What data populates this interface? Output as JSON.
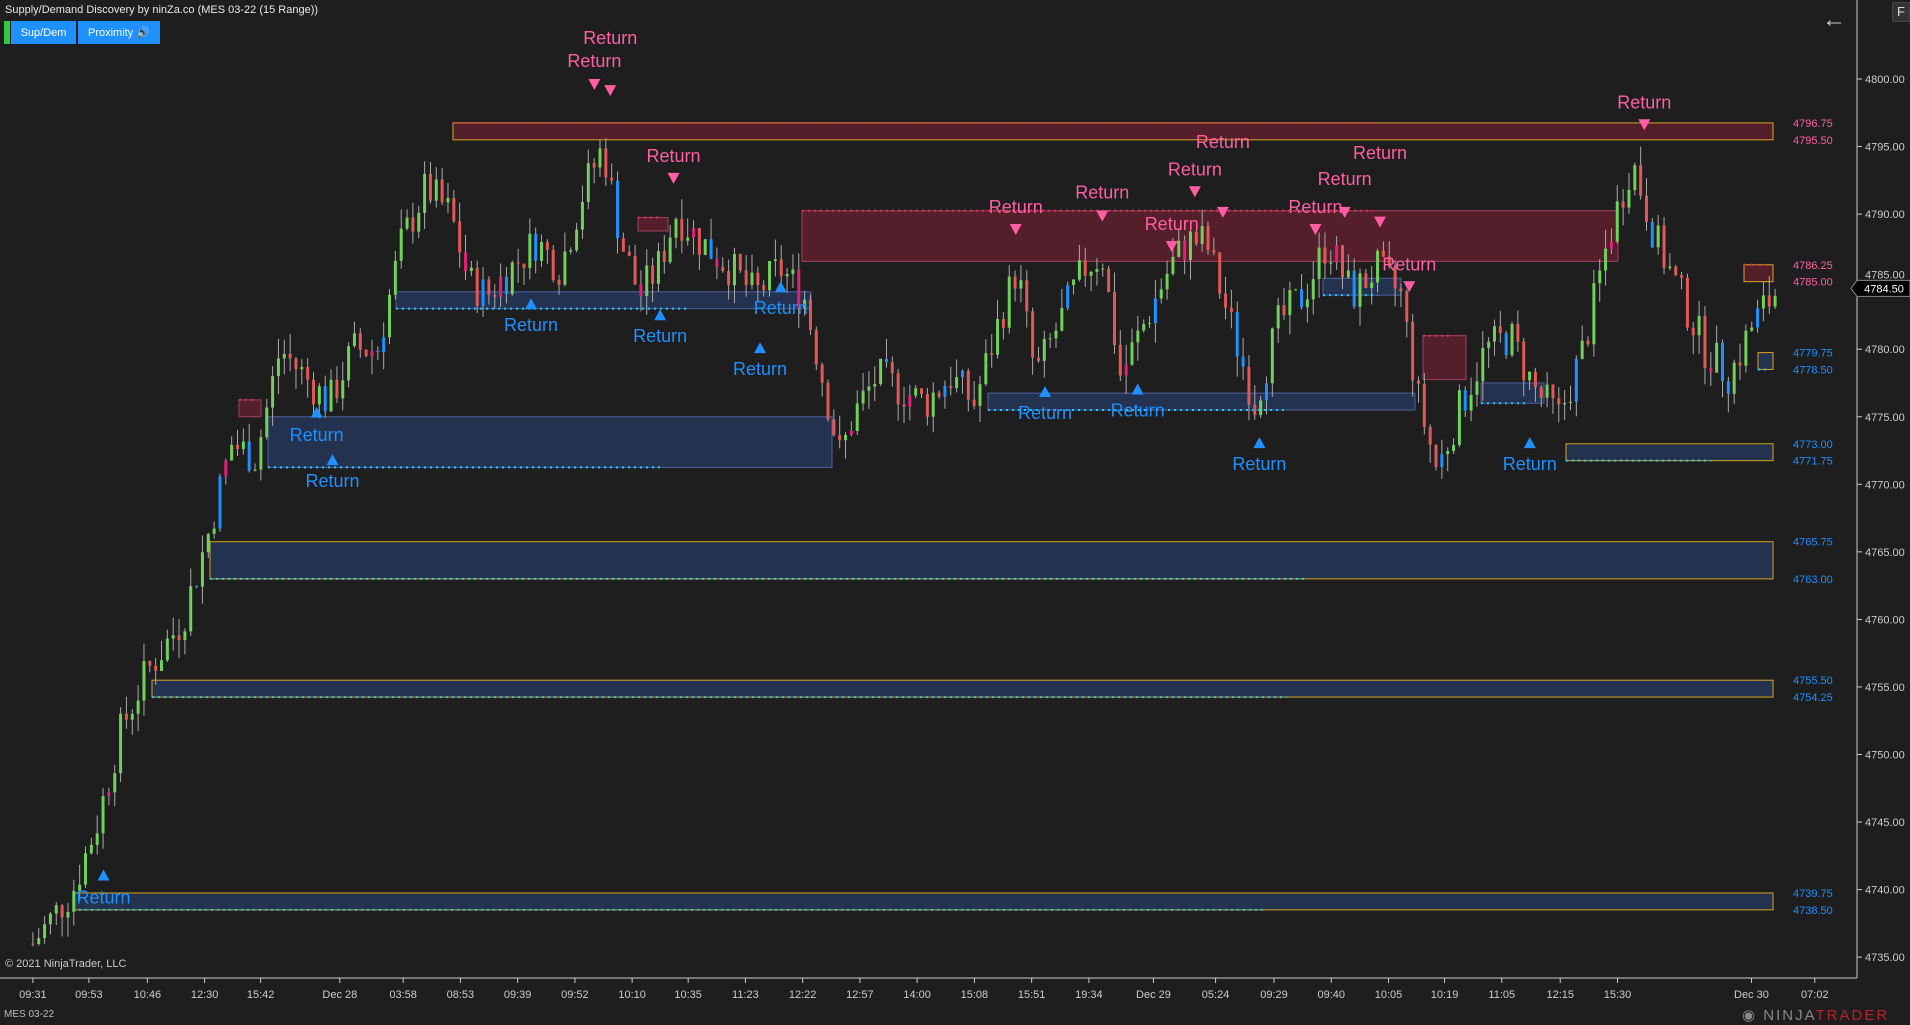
{
  "window": {
    "title": "Supply/Demand Discovery by ninZa.co (MES 03-22 (15 Range))",
    "instrument": "MES 03-22",
    "copyright": "© 2021 NinjaTrader, LLC",
    "logo_text": "NINJATRADER",
    "f_button": "F"
  },
  "toolbar": {
    "sup_dem_label": "Sup/Dem",
    "proximity_label": "Proximity",
    "proximity_icon": "speaker-icon"
  },
  "colors": {
    "background": "#1e1e1e",
    "supply": "#ff5fa2",
    "demand": "#1e90ff",
    "zone_border": "#d9a520",
    "up_candle": "#6fd05a",
    "down_candle": "#e05858"
  },
  "chart_data": {
    "type": "candlestick",
    "title": "",
    "xlabel": "",
    "ylabel": "",
    "ylim": [
      4734,
      4803
    ],
    "y_ticks": [
      "4800.00",
      "4795.00",
      "4790.00",
      "4785.00",
      "4780.00",
      "4775.00",
      "4770.00",
      "4765.00",
      "4760.00",
      "4755.00",
      "4750.00",
      "4745.00",
      "4740.00",
      "4735.00"
    ],
    "x_ticks": [
      "09:31",
      "09:53",
      "10:46",
      "12:30",
      "15:42",
      "Dec 28",
      "03:58",
      "08:53",
      "09:39",
      "09:52",
      "10:10",
      "10:35",
      "11:23",
      "12:22",
      "12:57",
      "14:00",
      "15:08",
      "15:51",
      "19:34",
      "Dec 29",
      "05:24",
      "09:29",
      "09:40",
      "10:05",
      "10:19",
      "11:05",
      "12:15",
      "15:30",
      "Dec 30",
      "07:02"
    ],
    "close_path": [
      4736,
      4740,
      4745,
      4752,
      4756,
      4760,
      4766,
      4773,
      4772,
      4780,
      4778,
      4776,
      4780,
      4780,
      4788,
      4792,
      4790,
      4785,
      4784,
      4786,
      4788,
      4786,
      4792,
      4795,
      4788,
      4784,
      4786,
      4790,
      4788,
      4786,
      4784,
      4786,
      4784,
      4778,
      4772,
      4775,
      4778,
      4777,
      4776,
      4778,
      4776,
      4782,
      4786,
      4778,
      4782,
      4786,
      4787,
      4778,
      4782,
      4786,
      4788,
      4788,
      4782,
      4776,
      4782,
      4784,
      4788,
      4784,
      4786,
      4784,
      4776,
      4771,
      4776,
      4780,
      4781,
      4777,
      4775,
      4780,
      4788,
      4794,
      4788,
      4784,
      4780,
      4778,
      4782,
      4784.5
    ],
    "last_price": "4784.50",
    "supply_zones": [
      {
        "top": 4796.75,
        "bottom": 4795.5,
        "top_label": "4796.75",
        "bottom_label": "4795.50"
      },
      {
        "top": 4790.25,
        "bottom": 4786.5
      },
      {
        "top": 4786.25,
        "bottom": 4785.0,
        "top_label": "4786.25",
        "bottom_label": "4785.00"
      },
      {
        "top": 4776.25,
        "bottom": 4775.0
      },
      {
        "top": 4789.75,
        "bottom": 4788.75
      },
      {
        "top": 4781.0,
        "bottom": 4777.75
      }
    ],
    "demand_zones": [
      {
        "top": 4784.25,
        "bottom": 4783.0
      },
      {
        "top": 4775.0,
        "bottom": 4771.25
      },
      {
        "top": 4776.75,
        "bottom": 4775.5
      },
      {
        "top": 4785.25,
        "bottom": 4784.0
      },
      {
        "top": 4777.5,
        "bottom": 4776.0
      },
      {
        "top": 4773.0,
        "bottom": 4771.75,
        "top_label": "4773.00",
        "bottom_label": "4771.75"
      },
      {
        "top": 4779.75,
        "bottom": 4778.5,
        "top_label": "4779.75",
        "bottom_label": "4778.50"
      },
      {
        "top": 4765.75,
        "bottom": 4763.0,
        "top_label": "4765.75",
        "bottom_label": "4763.00"
      },
      {
        "top": 4755.5,
        "bottom": 4754.25,
        "top_label": "4755.50",
        "bottom_label": "4754.25"
      },
      {
        "top": 4739.75,
        "bottom": 4738.5,
        "top_label": "4739.75",
        "bottom_label": "4738.50"
      }
    ],
    "annotation_text": "Return"
  }
}
